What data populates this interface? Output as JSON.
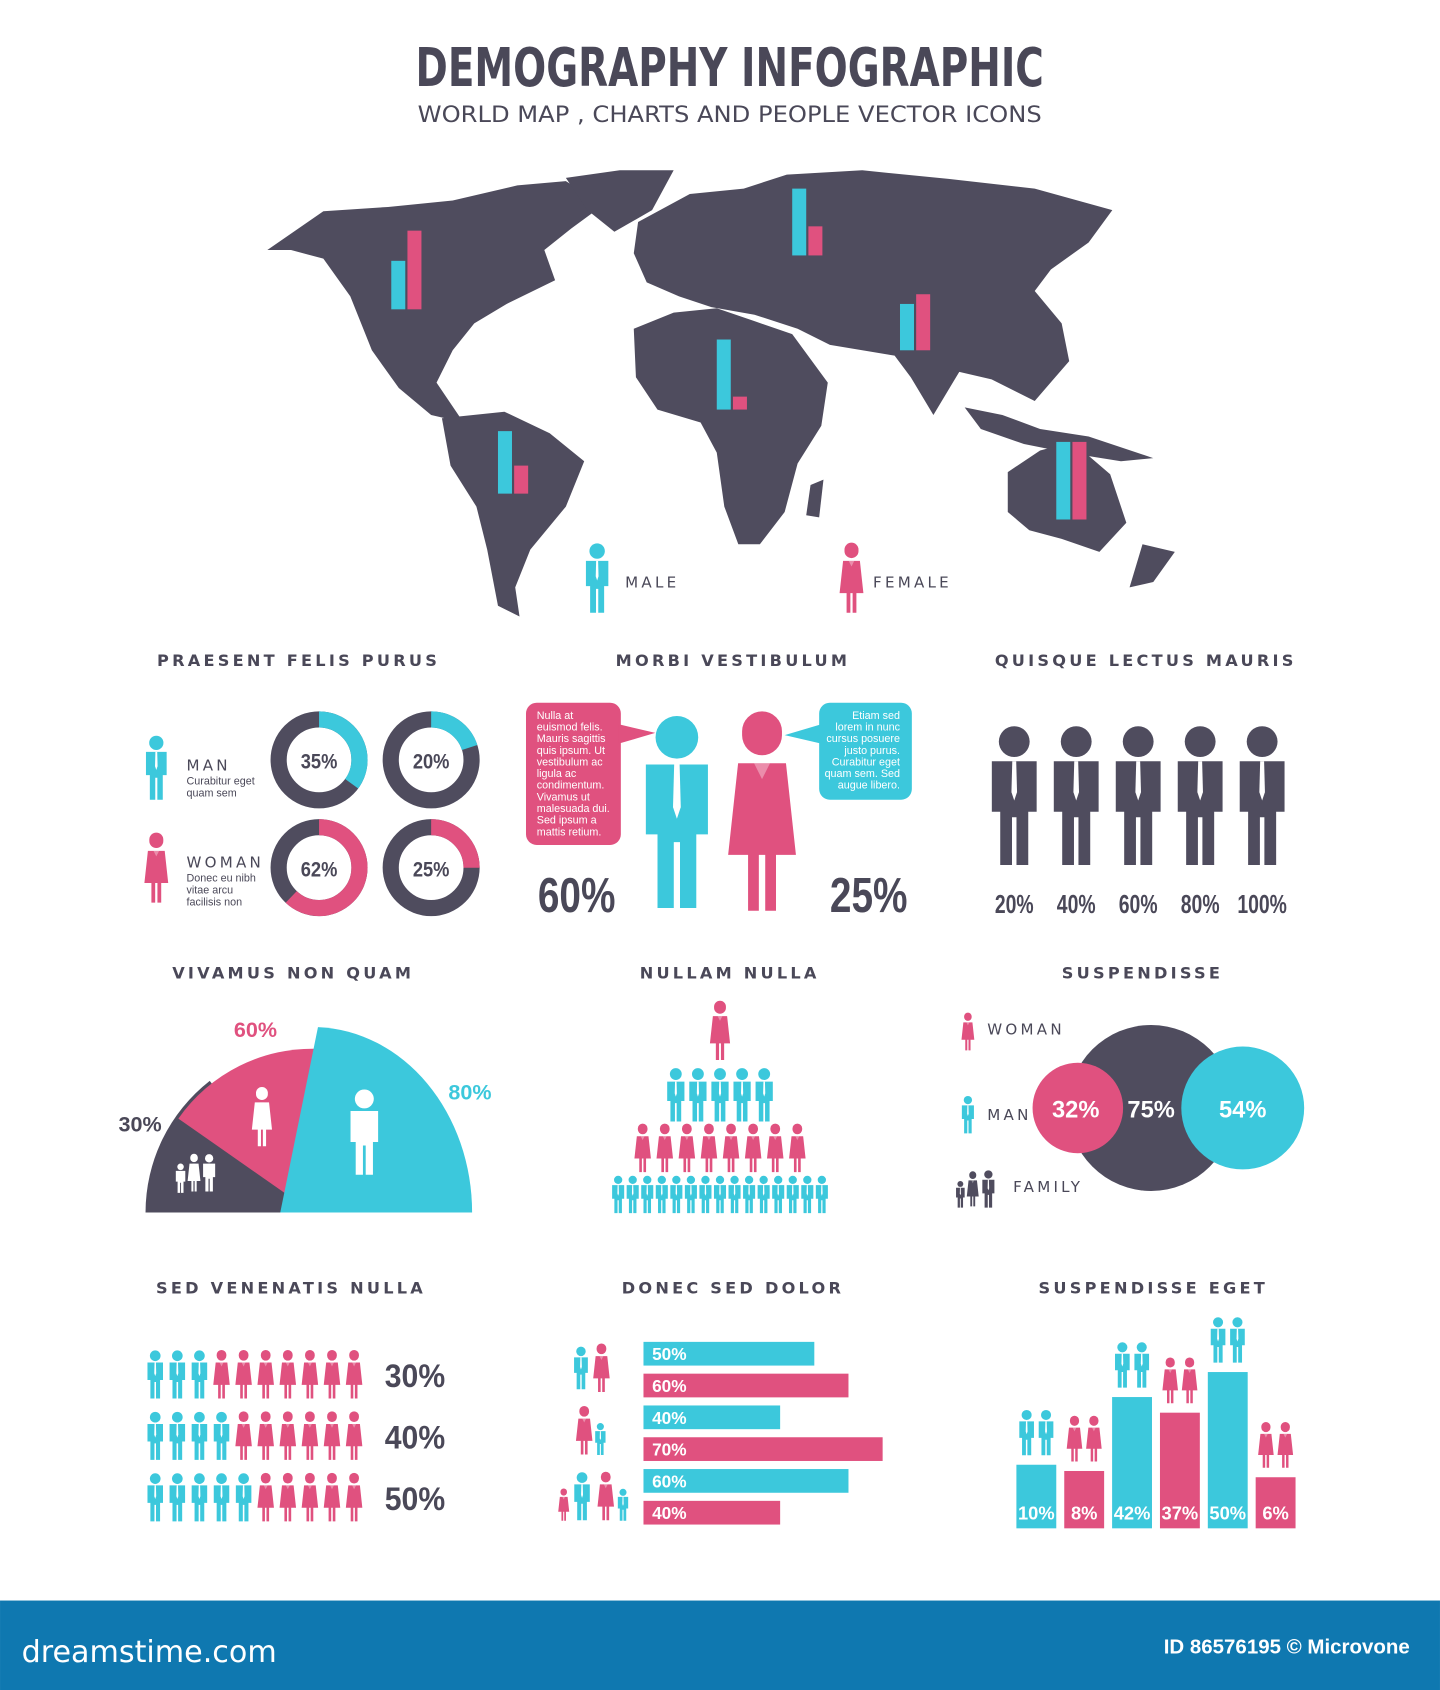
{
  "header": {
    "title": "DEMOGRAPHY INFOGRAPHIC",
    "subtitle": "WORLD MAP , CHARTS AND PEOPLE VECTOR ICONS"
  },
  "colors": {
    "male": "#3cc8dc",
    "female": "#e0517f",
    "dark": "#4f4c5e",
    "text": "#4a4858",
    "footer": "#0f78b0"
  },
  "map": {
    "legend": {
      "male": "MALE",
      "female": "FEMALE"
    },
    "bars": [
      {
        "region": "north-america",
        "male": 45,
        "female": 73
      },
      {
        "region": "europe",
        "male": 62,
        "female": 27
      },
      {
        "region": "africa",
        "male": 65,
        "female": 12
      },
      {
        "region": "asia",
        "male": 43,
        "female": 52
      },
      {
        "region": "south-america",
        "male": 58,
        "female": 26
      },
      {
        "region": "australia",
        "male": 72,
        "female": 72
      }
    ]
  },
  "sections": {
    "praesent": {
      "title": "PRAESENT FELIS PURUS",
      "man": {
        "label": "MAN",
        "desc": [
          "Curabitur eget",
          "quam sem"
        ]
      },
      "woman": {
        "label": "WOMAN",
        "desc": [
          "Donec eu nibh",
          "vitae arcu",
          "facilisis non"
        ]
      }
    },
    "morbi": {
      "title": "MORBI VESTIBULUM",
      "left_bubble": [
        "Nulla at",
        "euismod felis.",
        "Mauris sagittis",
        "quis ipsum. Ut",
        "vestibulum ac",
        "ligula ac",
        "condimentum.",
        "Vivamus ut",
        "malesuada dui.",
        "Sed ipsum a",
        "mattis retium."
      ],
      "right_bubble": [
        "Etiam sed",
        "lorem in nunc",
        "cursus posuere",
        "justo purus.",
        "Curabitur eget",
        "quam sem. Sed",
        "augue libero."
      ],
      "male_pct": "60%",
      "female_pct": "25%"
    },
    "quisque": {
      "title": "QUISQUE LECTUS MAURIS"
    },
    "vivamus": {
      "title": "VIVAMUS NON QUAM"
    },
    "nullam": {
      "title": "NULLAM NULLA"
    },
    "suspendisse": {
      "title": "SUSPENDISSE",
      "legend": {
        "woman": "WOMAN",
        "man": "MAN",
        "family": "FAMILY"
      }
    },
    "sed": {
      "title": "SED VENENATIS NULLA"
    },
    "donec": {
      "title": "DONEC SED DOLOR"
    },
    "eget": {
      "title": "SUSPENDISSE EGET"
    }
  },
  "chart_data": [
    {
      "id": "praesent",
      "type": "pie",
      "title": "PRAESENT FELIS PURUS",
      "donuts": [
        {
          "group": "MAN",
          "value": 35,
          "label": "35%",
          "color": "#3cc8dc"
        },
        {
          "group": "MAN",
          "value": 20,
          "label": "20%",
          "color": "#3cc8dc"
        },
        {
          "group": "WOMAN",
          "value": 62,
          "label": "62%",
          "color": "#e0517f"
        },
        {
          "group": "WOMAN",
          "value": 25,
          "label": "25%",
          "color": "#e0517f"
        }
      ]
    },
    {
      "id": "quisque",
      "type": "bar",
      "title": "QUISQUE LECTUS MAURIS",
      "values": [
        20,
        40,
        60,
        80,
        100
      ],
      "labels": [
        "20%",
        "40%",
        "60%",
        "80%",
        "100%"
      ]
    },
    {
      "id": "vivamus",
      "type": "pie",
      "title": "VIVAMUS NON QUAM",
      "slices": [
        {
          "label": "30%",
          "value": 30,
          "icon": "family",
          "color": "#4f4c5e"
        },
        {
          "label": "60%",
          "value": 60,
          "icon": "woman",
          "color": "#e0517f"
        },
        {
          "label": "80%",
          "value": 80,
          "icon": "man",
          "color": "#3cc8dc"
        }
      ]
    },
    {
      "id": "nullam",
      "type": "bar",
      "title": "NULLAM NULLA",
      "rows": [
        {
          "count": 1,
          "gender": "female"
        },
        {
          "count": 5,
          "gender": "male"
        },
        {
          "count": 8,
          "gender": "female"
        },
        {
          "count": 15,
          "gender": "male"
        }
      ]
    },
    {
      "id": "suspendisse",
      "type": "scatter",
      "title": "SUSPENDISSE",
      "circles": [
        {
          "label": "32%",
          "value": 32,
          "series": "WOMAN",
          "color": "#e0517f"
        },
        {
          "label": "75%",
          "value": 75,
          "series": "FAMILY",
          "color": "#4f4c5e"
        },
        {
          "label": "54%",
          "value": 54,
          "series": "MAN",
          "color": "#3cc8dc"
        }
      ]
    },
    {
      "id": "sed",
      "type": "bar",
      "title": "SED VENENATIS NULLA",
      "rows": [
        {
          "label": "30%",
          "male": 3,
          "total": 10
        },
        {
          "label": "40%",
          "male": 4,
          "total": 10
        },
        {
          "label": "50%",
          "male": 5,
          "total": 10
        }
      ]
    },
    {
      "id": "donec",
      "type": "bar",
      "title": "DONEC SED DOLOR",
      "values": [
        50,
        60,
        40,
        70,
        60,
        40
      ],
      "labels": [
        "50%",
        "60%",
        "40%",
        "70%",
        "60%",
        "40%"
      ],
      "colors": [
        "#3cc8dc",
        "#e0517f",
        "#3cc8dc",
        "#e0517f",
        "#3cc8dc",
        "#e0517f"
      ]
    },
    {
      "id": "eget",
      "type": "bar",
      "title": "SUSPENDISSE EGET",
      "values": [
        10,
        8,
        42,
        37,
        50,
        6
      ],
      "labels": [
        "10%",
        "8%",
        "42%",
        "37%",
        "50%",
        "6%"
      ],
      "colors": [
        "#3cc8dc",
        "#e0517f",
        "#3cc8dc",
        "#e0517f",
        "#3cc8dc",
        "#e0517f"
      ]
    }
  ],
  "footer": {
    "logo": "dreamstime.com",
    "credit": "ID 86576195 © Microvone"
  }
}
